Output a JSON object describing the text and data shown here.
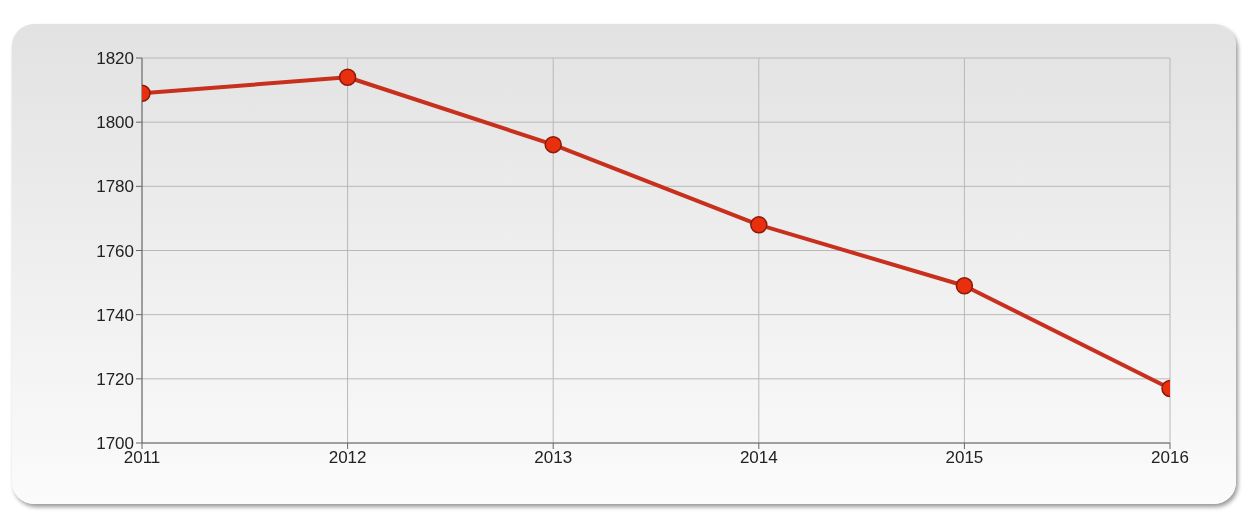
{
  "chart_data": {
    "type": "line",
    "x": [
      2011,
      2012,
      2013,
      2014,
      2015,
      2016
    ],
    "series": [
      {
        "color": "#c8301e",
        "values": [
          1809,
          1814,
          1793,
          1768,
          1749,
          1717
        ]
      }
    ],
    "xlim": [
      2011,
      2016
    ],
    "xticks": [
      2011,
      2012,
      2013,
      2014,
      2015,
      2016
    ],
    "ylim": [
      1700,
      1820
    ],
    "yticks": [
      1700,
      1720,
      1740,
      1760,
      1780,
      1800,
      1820
    ],
    "grid": true,
    "marker": "circle",
    "line_style": "solid",
    "legend": false
  }
}
